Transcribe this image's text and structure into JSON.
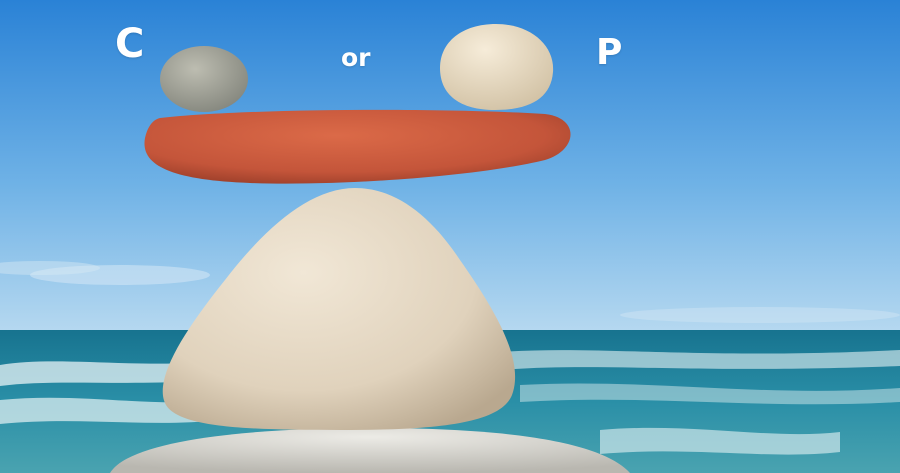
{
  "labels": {
    "left": "C",
    "middle": "or",
    "right": "P"
  },
  "colors": {
    "sky_top": "#2a82d6",
    "sky_bottom": "#a9d2ee",
    "sea": "#1e7f9a",
    "foam": "#e8f3f5",
    "plank": "#c8593b",
    "base_stone": "#e2d6c3",
    "left_pebble": "#a8a89c",
    "right_pebble": "#ede1cb",
    "bottom_rock": "#d9d6cf"
  }
}
